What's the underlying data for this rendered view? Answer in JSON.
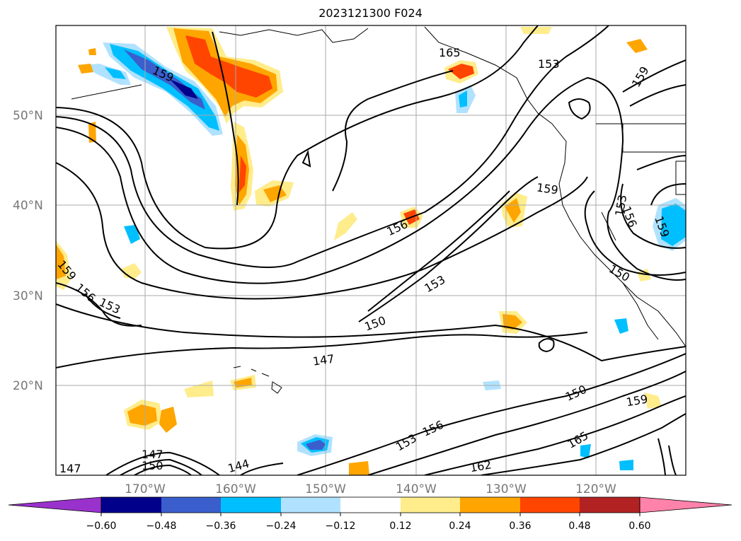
{
  "title": "2023121300 F024",
  "map": {
    "lat_labels": [
      "50°N",
      "40°N",
      "30°N",
      "20°N"
    ],
    "lon_labels": [
      "170°W",
      "160°W",
      "150°W",
      "140°W",
      "130°W",
      "120°W"
    ],
    "contour_labels": [
      "159",
      "165",
      "156",
      "159",
      "153",
      "156",
      "159",
      "153",
      "150",
      "153",
      "150",
      "147",
      "159",
      "156",
      "153",
      "144",
      "147",
      "147",
      "150",
      "159",
      "153",
      "156",
      "162",
      "165",
      "159",
      "150"
    ],
    "contour_color": "#000000"
  },
  "colorbar": {
    "ticks": [
      "−0.60",
      "−0.48",
      "−0.36",
      "−0.24",
      "−0.12",
      "0.12",
      "0.24",
      "0.36",
      "0.48",
      "0.60"
    ],
    "colors": [
      "#9932cc",
      "#00008b",
      "#3a5fcd",
      "#00bfff",
      "#b0e2ff",
      "#ffffff",
      "#ffec8b",
      "#ffa500",
      "#ff4500",
      "#b22222",
      "#ff82ab"
    ]
  }
}
